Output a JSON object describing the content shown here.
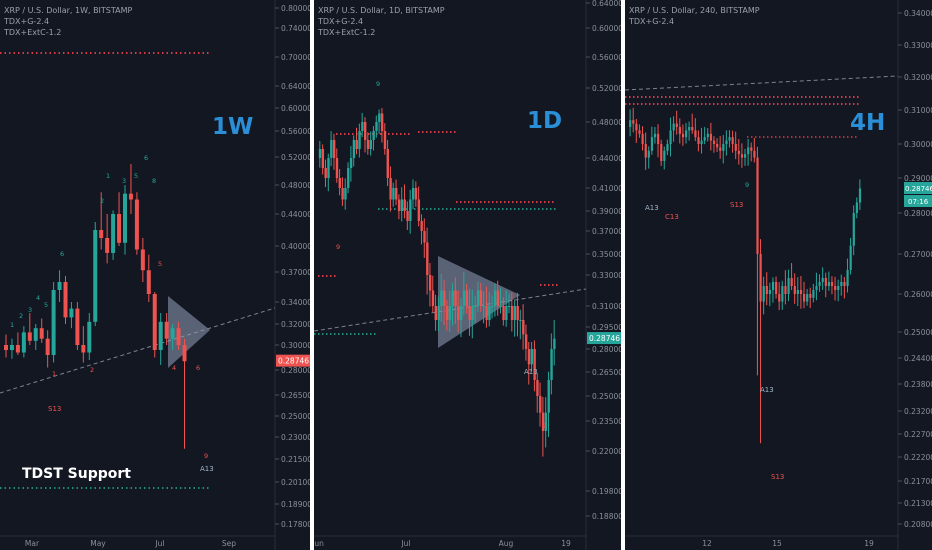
{
  "panels": [
    {
      "id": "1w",
      "legend": [
        "XRP / U.S. Dollar, 1W, BITSTAMP",
        "TDX+G-2.4",
        "TDX+ExtC-1.2"
      ],
      "timeframe_label": "1W",
      "extra_label": "TDST Support",
      "price_tag": "0.28746",
      "time_tag": "",
      "x_ticks": [
        "Mar",
        "May",
        "Jul",
        "Sep"
      ],
      "annotations": [
        "S13",
        "A13"
      ]
    },
    {
      "id": "1d",
      "legend": [
        "XRP / U.S. Dollar, 1D, BITSTAMP",
        "TDX+G-2.4",
        "TDX+ExtC-1.2"
      ],
      "timeframe_label": "1D",
      "extra_label": "",
      "price_tag": "0.28746",
      "time_tag": "",
      "x_ticks": [
        "Jun",
        "Jul",
        "Aug",
        "19"
      ],
      "annotations": [
        "A13"
      ]
    },
    {
      "id": "4h",
      "legend": [
        "XRP / U.S. Dollar, 240, BITSTAMP",
        "TDX+G-2.4"
      ],
      "timeframe_label": "4H",
      "extra_label": "",
      "price_tag": "0.28746",
      "time_tag": "07:16",
      "x_ticks": [
        "12",
        "15",
        "19"
      ],
      "annotations": [
        "A13",
        "C13",
        "S13",
        "A13",
        "S13"
      ]
    }
  ],
  "colors": {
    "bg": "#131722",
    "up": "#26a69a",
    "down": "#ef5350",
    "label_blue": "#2a8fd6",
    "axis_text": "#8a8f9a",
    "support_green": "#1f8a78",
    "resistance_red": "#d63a45"
  },
  "chart_data": [
    {
      "type": "candlestick",
      "title": "XRP / U.S. Dollar, 1W, BITSTAMP",
      "y_ticks": [
        "0.80000",
        "0.74000",
        "0.70000",
        "0.64000",
        "0.60000",
        "0.56000",
        "0.52000",
        "0.48000",
        "0.44000",
        "0.40000",
        "0.37000",
        "0.34000",
        "0.32000",
        "0.30000",
        "0.28000",
        "0.26500",
        "0.25000",
        "0.23000",
        "0.21500",
        "0.20100",
        "0.18900",
        "0.17800"
      ],
      "ylim": [
        0.178,
        0.8
      ],
      "x_ticks": [
        "Mar",
        "May",
        "Jul",
        "Sep"
      ],
      "last_price": 0.28746,
      "candles": [
        {
          "o": 0.3,
          "h": 0.31,
          "l": 0.29,
          "c": 0.296
        },
        {
          "o": 0.296,
          "h": 0.306,
          "l": 0.289,
          "c": 0.3
        },
        {
          "o": 0.3,
          "h": 0.312,
          "l": 0.292,
          "c": 0.294
        },
        {
          "o": 0.294,
          "h": 0.318,
          "l": 0.29,
          "c": 0.312
        },
        {
          "o": 0.312,
          "h": 0.33,
          "l": 0.3,
          "c": 0.304
        },
        {
          "o": 0.304,
          "h": 0.32,
          "l": 0.296,
          "c": 0.316
        },
        {
          "o": 0.316,
          "h": 0.325,
          "l": 0.302,
          "c": 0.306
        },
        {
          "o": 0.306,
          "h": 0.314,
          "l": 0.282,
          "c": 0.292
        },
        {
          "o": 0.292,
          "h": 0.36,
          "l": 0.286,
          "c": 0.352
        },
        {
          "o": 0.352,
          "h": 0.372,
          "l": 0.34,
          "c": 0.36
        },
        {
          "o": 0.36,
          "h": 0.366,
          "l": 0.32,
          "c": 0.326
        },
        {
          "o": 0.326,
          "h": 0.34,
          "l": 0.316,
          "c": 0.334
        },
        {
          "o": 0.334,
          "h": 0.34,
          "l": 0.296,
          "c": 0.3
        },
        {
          "o": 0.3,
          "h": 0.318,
          "l": 0.286,
          "c": 0.294
        },
        {
          "o": 0.294,
          "h": 0.33,
          "l": 0.288,
          "c": 0.322
        },
        {
          "o": 0.322,
          "h": 0.43,
          "l": 0.318,
          "c": 0.42
        },
        {
          "o": 0.42,
          "h": 0.47,
          "l": 0.396,
          "c": 0.41
        },
        {
          "o": 0.41,
          "h": 0.44,
          "l": 0.38,
          "c": 0.392
        },
        {
          "o": 0.392,
          "h": 0.445,
          "l": 0.384,
          "c": 0.44
        },
        {
          "o": 0.44,
          "h": 0.47,
          "l": 0.4,
          "c": 0.404
        },
        {
          "o": 0.404,
          "h": 0.48,
          "l": 0.39,
          "c": 0.468
        },
        {
          "o": 0.468,
          "h": 0.51,
          "l": 0.44,
          "c": 0.46
        },
        {
          "o": 0.46,
          "h": 0.47,
          "l": 0.39,
          "c": 0.396
        },
        {
          "o": 0.396,
          "h": 0.41,
          "l": 0.36,
          "c": 0.372
        },
        {
          "o": 0.372,
          "h": 0.39,
          "l": 0.34,
          "c": 0.348
        },
        {
          "o": 0.348,
          "h": 0.35,
          "l": 0.29,
          "c": 0.296
        },
        {
          "o": 0.296,
          "h": 0.33,
          "l": 0.284,
          "c": 0.322
        },
        {
          "o": 0.322,
          "h": 0.33,
          "l": 0.3,
          "c": 0.306
        },
        {
          "o": 0.306,
          "h": 0.32,
          "l": 0.296,
          "c": 0.316
        },
        {
          "o": 0.316,
          "h": 0.322,
          "l": 0.296,
          "c": 0.3
        },
        {
          "o": 0.3,
          "h": 0.306,
          "l": 0.222,
          "c": 0.287
        }
      ]
    },
    {
      "type": "candlestick",
      "title": "XRP / U.S. Dollar, 1D, BITSTAMP",
      "y_ticks": [
        "0.64000",
        "0.60000",
        "0.56000",
        "0.52000",
        "0.48000",
        "0.44000",
        "0.41000",
        "0.39000",
        "0.37000",
        "0.35000",
        "0.33000",
        "0.31000",
        "0.29500",
        "0.28000",
        "0.26500",
        "0.25000",
        "0.23500",
        "0.22000",
        "0.19800",
        "0.18800"
      ],
      "ylim": [
        0.188,
        0.64
      ],
      "x_ticks": [
        "Jun",
        "Jul",
        "Aug",
        "19"
      ],
      "last_price": 0.28746,
      "trend": "0.44 to 0.48 in June, sell-off to 0.30 in July, triangle consolidation 0.29-0.33, drop to 0.23 in August, rebound to 0.287"
    },
    {
      "type": "candlestick",
      "title": "XRP / U.S. Dollar, 240, BITSTAMP",
      "y_ticks": [
        "0.34000",
        "0.33000",
        "0.32000",
        "0.31000",
        "0.30000",
        "0.29000",
        "0.28000",
        "0.27000",
        "0.26000",
        "0.25000",
        "0.24400",
        "0.23800",
        "0.23200",
        "0.22700",
        "0.22200",
        "0.21700",
        "0.21300",
        "0.20800"
      ],
      "ylim": [
        0.208,
        0.34
      ],
      "x_ticks": [
        "12",
        "15",
        "19"
      ],
      "last_price": 0.28746,
      "trend": "0.305 range until 15th, crash to 0.225, rebound to 0.26 range, rally to 0.287"
    }
  ]
}
